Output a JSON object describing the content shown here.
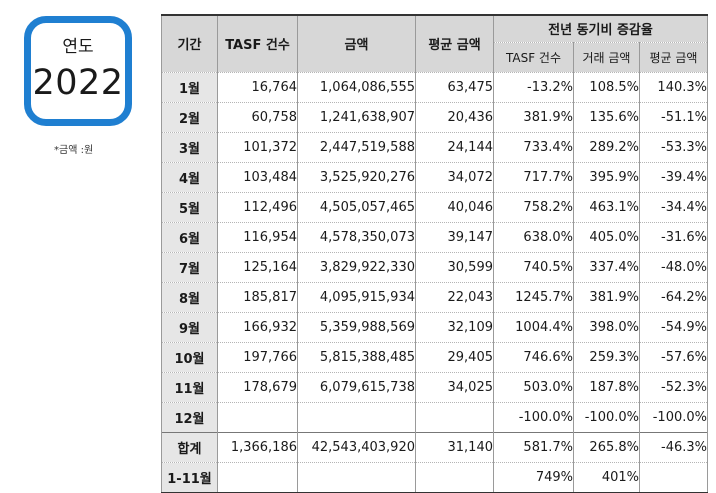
{
  "year_box": {
    "label": "연도",
    "value": "2022"
  },
  "unit_note": "*금액 :원",
  "headers": {
    "period": "기간",
    "count": "TASF 건수",
    "amount": "금액",
    "average": "평균 금액",
    "yoy_group": "전년 동기비 증감율",
    "yoy_count": "TASF 건수",
    "yoy_amount": "거래 금액",
    "yoy_average": "평균 금액"
  },
  "rows": [
    {
      "period": "1월",
      "count": "16,764",
      "amount": "1,064,086,555",
      "average": "63,475",
      "yoy_count": "-13.2%",
      "yoy_amount": "108.5%",
      "yoy_average": "140.3%"
    },
    {
      "period": "2월",
      "count": "60,758",
      "amount": "1,241,638,907",
      "average": "20,436",
      "yoy_count": "381.9%",
      "yoy_amount": "135.6%",
      "yoy_average": "-51.1%"
    },
    {
      "period": "3월",
      "count": "101,372",
      "amount": "2,447,519,588",
      "average": "24,144",
      "yoy_count": "733.4%",
      "yoy_amount": "289.2%",
      "yoy_average": "-53.3%"
    },
    {
      "period": "4월",
      "count": "103,484",
      "amount": "3,525,920,276",
      "average": "34,072",
      "yoy_count": "717.7%",
      "yoy_amount": "395.9%",
      "yoy_average": "-39.4%"
    },
    {
      "period": "5월",
      "count": "112,496",
      "amount": "4,505,057,465",
      "average": "40,046",
      "yoy_count": "758.2%",
      "yoy_amount": "463.1%",
      "yoy_average": "-34.4%"
    },
    {
      "period": "6월",
      "count": "116,954",
      "amount": "4,578,350,073",
      "average": "39,147",
      "yoy_count": "638.0%",
      "yoy_amount": "405.0%",
      "yoy_average": "-31.6%"
    },
    {
      "period": "7월",
      "count": "125,164",
      "amount": "3,829,922,330",
      "average": "30,599",
      "yoy_count": "740.5%",
      "yoy_amount": "337.4%",
      "yoy_average": "-48.0%"
    },
    {
      "period": "8월",
      "count": "185,817",
      "amount": "4,095,915,934",
      "average": "22,043",
      "yoy_count": "1245.7%",
      "yoy_amount": "381.9%",
      "yoy_average": "-64.2%"
    },
    {
      "period": "9월",
      "count": "166,932",
      "amount": "5,359,988,569",
      "average": "32,109",
      "yoy_count": "1004.4%",
      "yoy_amount": "398.0%",
      "yoy_average": "-54.9%"
    },
    {
      "period": "10월",
      "count": "197,766",
      "amount": "5,815,388,485",
      "average": "29,405",
      "yoy_count": "746.6%",
      "yoy_amount": "259.3%",
      "yoy_average": "-57.6%"
    },
    {
      "period": "11월",
      "count": "178,679",
      "amount": "6,079,615,738",
      "average": "34,025",
      "yoy_count": "503.0%",
      "yoy_amount": "187.8%",
      "yoy_average": "-52.3%"
    },
    {
      "period": "12월",
      "count": "",
      "amount": "",
      "average": "",
      "yoy_count": "-100.0%",
      "yoy_amount": "-100.0%",
      "yoy_average": "-100.0%"
    },
    {
      "period": "합계",
      "count": "1,366,186",
      "amount": "42,543,403,920",
      "average": "31,140",
      "yoy_count": "581.7%",
      "yoy_amount": "265.8%",
      "yoy_average": "-46.3%"
    },
    {
      "period": "1-11월",
      "count": "",
      "amount": "",
      "average": "",
      "yoy_count": "749%",
      "yoy_amount": "401%",
      "yoy_average": ""
    }
  ]
}
